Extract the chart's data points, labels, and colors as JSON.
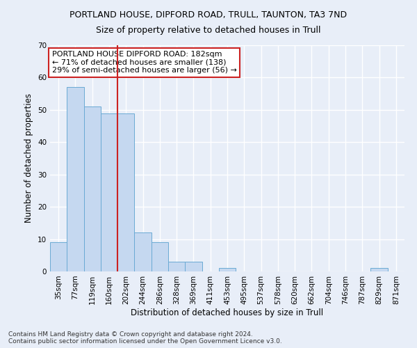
{
  "title": "PORTLAND HOUSE, DIPFORD ROAD, TRULL, TAUNTON, TA3 7ND",
  "subtitle": "Size of property relative to detached houses in Trull",
  "xlabel": "Distribution of detached houses by size in Trull",
  "ylabel": "Number of detached properties",
  "bar_labels": [
    "35sqm",
    "77sqm",
    "119sqm",
    "160sqm",
    "202sqm",
    "244sqm",
    "286sqm",
    "328sqm",
    "369sqm",
    "411sqm",
    "453sqm",
    "495sqm",
    "537sqm",
    "578sqm",
    "620sqm",
    "662sqm",
    "704sqm",
    "746sqm",
    "787sqm",
    "829sqm",
    "871sqm"
  ],
  "bar_values": [
    9,
    57,
    51,
    49,
    49,
    12,
    9,
    3,
    3,
    0,
    1,
    0,
    0,
    0,
    0,
    0,
    0,
    0,
    0,
    1,
    0
  ],
  "bar_color": "#c5d8f0",
  "bar_edgecolor": "#6aaad4",
  "ylim": [
    0,
    70
  ],
  "yticks": [
    0,
    10,
    20,
    30,
    40,
    50,
    60,
    70
  ],
  "vline_x_index": 4,
  "vline_color": "#cc2222",
  "annotation_text": "PORTLAND HOUSE DIPFORD ROAD: 182sqm\n← 71% of detached houses are smaller (138)\n29% of semi-detached houses are larger (56) →",
  "annotation_box_color": "#ffffff",
  "annotation_box_edgecolor": "#cc2222",
  "footer_text": "Contains HM Land Registry data © Crown copyright and database right 2024.\nContains public sector information licensed under the Open Government Licence v3.0.",
  "background_color": "#e8eef8",
  "grid_color": "#ffffff",
  "title_fontsize": 9,
  "subtitle_fontsize": 9,
  "xlabel_fontsize": 8.5,
  "ylabel_fontsize": 8.5,
  "tick_fontsize": 7.5,
  "footer_fontsize": 6.5,
  "annot_fontsize": 8
}
